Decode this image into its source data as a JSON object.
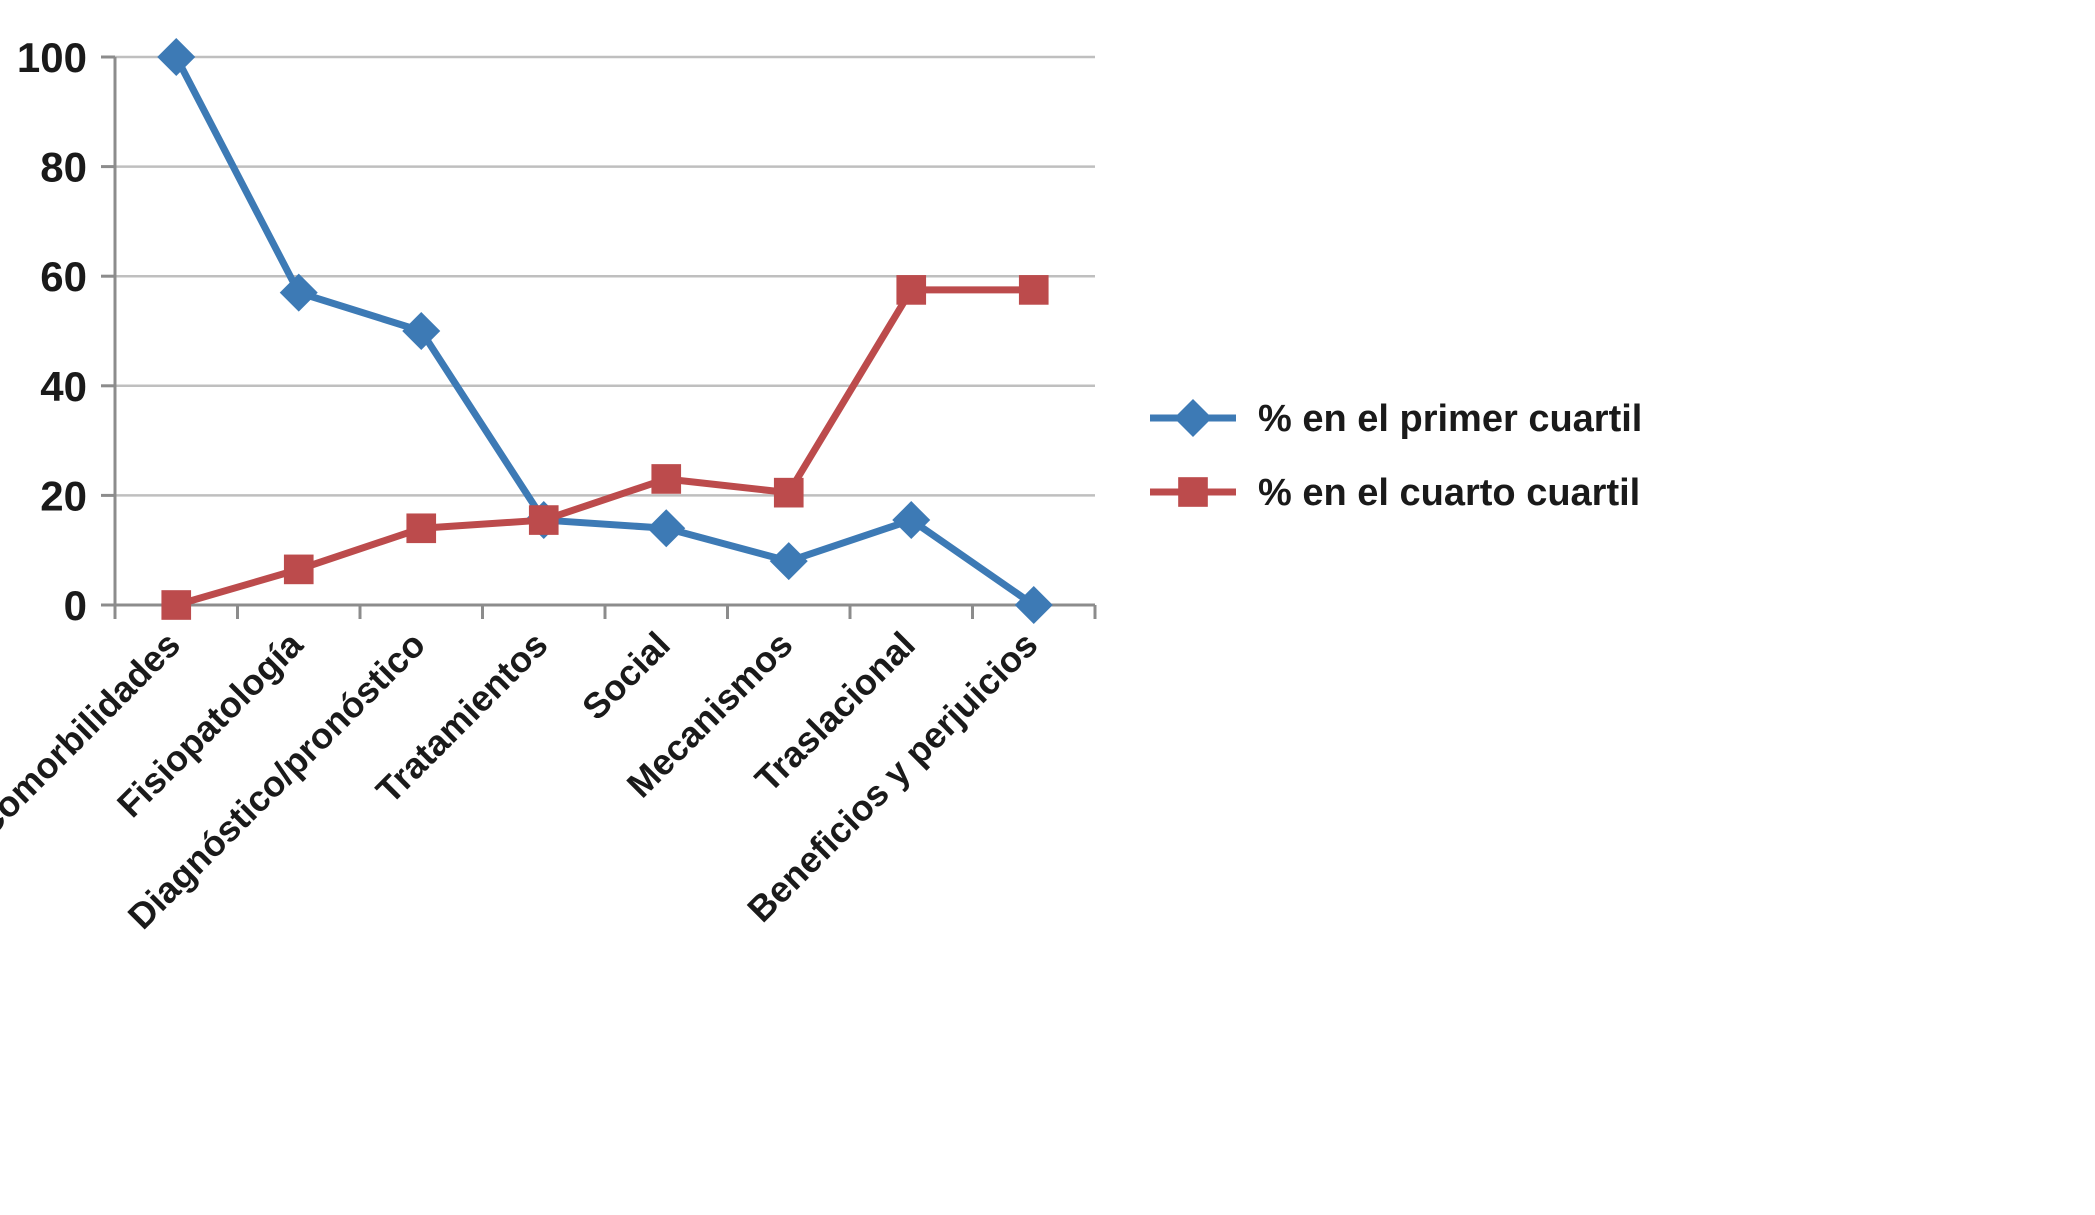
{
  "chart_data": {
    "type": "line",
    "title": "",
    "categories": [
      "Comorbilidades",
      "Fisiopatología",
      "Diagnóstico/pronóstico",
      "Tratamientos",
      "Social",
      "Mecanismos",
      "Traslacional",
      "Beneficios y perjuicios"
    ],
    "series": [
      {
        "name": "% en el primer cuartil",
        "marker": "diamond",
        "color": "#3D7AB5",
        "values": [
          100,
          57,
          50,
          15.5,
          14,
          8,
          15.5,
          0
        ]
      },
      {
        "name": "% en el cuarto cuartil",
        "marker": "square",
        "color": "#BC4B4C",
        "values": [
          0,
          6.5,
          14,
          15.5,
          23,
          20.5,
          57.5,
          57.5
        ]
      }
    ],
    "xlabel": "",
    "ylabel": "",
    "ylim": [
      0,
      100
    ],
    "yticks": [
      0,
      20,
      40,
      60,
      80,
      100
    ],
    "grid": true,
    "legend_position": "right"
  },
  "colors": {
    "grid": "#BFBFBF",
    "axis": "#8C8C8C",
    "text": "#1A1A1A",
    "background": "#FFFFFF"
  }
}
